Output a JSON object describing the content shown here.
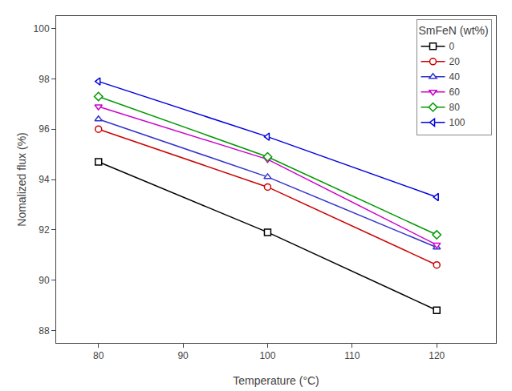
{
  "chart_data": {
    "type": "line",
    "xlabel": "Temperature (°C)",
    "ylabel": "Nomalized flux (%)",
    "x": [
      80,
      100,
      120
    ],
    "series": [
      {
        "name": "0",
        "color": "#000000",
        "marker": "square",
        "values": [
          94.7,
          91.9,
          88.8
        ]
      },
      {
        "name": "20",
        "color": "#cc0000",
        "marker": "circle",
        "values": [
          96.0,
          93.7,
          90.6
        ]
      },
      {
        "name": "40",
        "color": "#3333cc",
        "marker": "triangle-up",
        "values": [
          96.4,
          94.1,
          91.3
        ]
      },
      {
        "name": "60",
        "color": "#cc00cc",
        "marker": "triangle-down",
        "values": [
          96.9,
          94.8,
          91.4
        ]
      },
      {
        "name": "80",
        "color": "#009900",
        "marker": "diamond",
        "values": [
          97.3,
          94.9,
          91.8
        ]
      },
      {
        "name": "100",
        "color": "#0000dd",
        "marker": "triangle-left",
        "values": [
          97.9,
          95.7,
          93.3
        ]
      }
    ],
    "xlim": [
      75,
      127
    ],
    "ylim": [
      87.5,
      100.5
    ],
    "xticks": [
      80,
      90,
      100,
      110,
      120
    ],
    "yticks": [
      88,
      90,
      92,
      94,
      96,
      98,
      100
    ],
    "legend_title": "SmFeN (wt%)",
    "legend": "upper right",
    "grid": false
  }
}
